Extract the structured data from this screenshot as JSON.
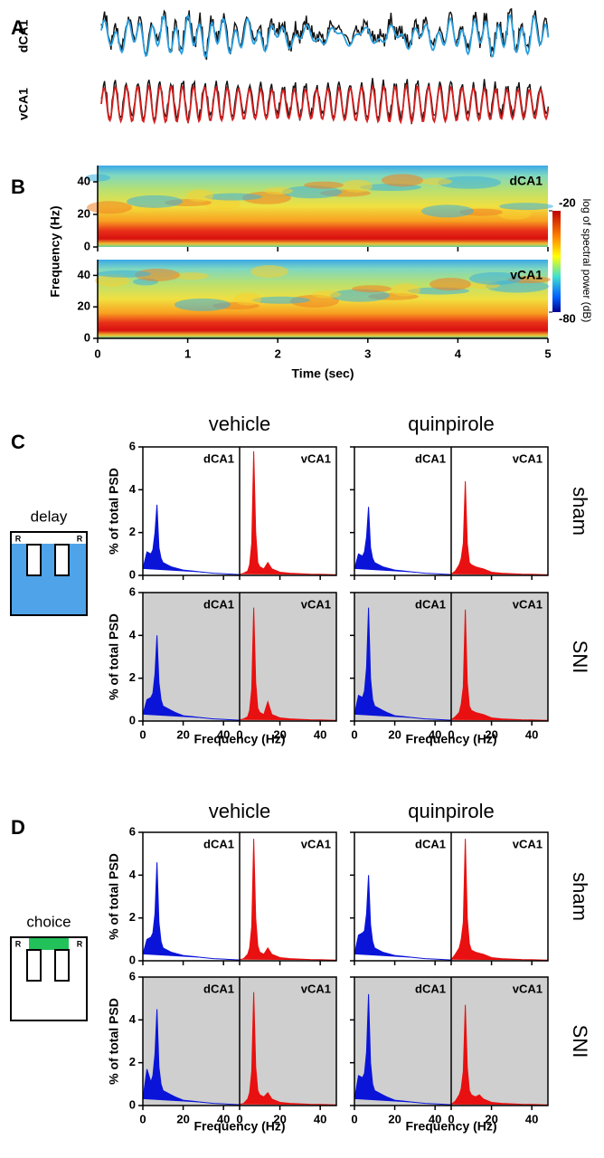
{
  "panel_labels": [
    "A",
    "B",
    "C",
    "D"
  ],
  "traces": {
    "labels": [
      "dCA1",
      "vCA1"
    ],
    "colors": [
      "#2aa0e0",
      "#d42020"
    ]
  },
  "spectrogram": {
    "ylabel": "Frequency (Hz)",
    "xlabel": "Time (sec)",
    "colorbar": {
      "clim": [
        -80,
        -20
      ],
      "ticks": [
        -20,
        -80
      ],
      "label": "log of spectral power (dB)"
    }
  },
  "psd": {
    "column_titles": [
      "vehicle",
      "quinpirole"
    ],
    "row_labels": [
      "sham",
      "SNI"
    ],
    "ylabel": "% of total PSD",
    "xlabel": "Frequency (Hz)"
  },
  "tasks": [
    {
      "label": "delay",
      "reward": "R",
      "color": "#4fa3e8"
    },
    {
      "label": "choice",
      "reward": "R",
      "color": "#22c15a"
    }
  ],
  "chart_data": [
    {
      "type": "heatmap",
      "label": "dCA1",
      "xlim": [
        0,
        5
      ],
      "xticks": [
        0,
        1,
        2,
        3,
        4,
        5
      ],
      "ylim": [
        0,
        50
      ],
      "yticks": [
        0,
        20,
        40
      ]
    },
    {
      "type": "heatmap",
      "label": "vCA1",
      "xlim": [
        0,
        5
      ],
      "xticks": [
        0,
        1,
        2,
        3,
        4,
        5
      ],
      "ylim": [
        0,
        50
      ],
      "yticks": [
        0,
        20,
        40
      ]
    },
    {
      "type": "area",
      "background": "#ffffff",
      "xlim": [
        0,
        48
      ],
      "xticks": [
        0,
        20,
        40
      ],
      "ylim": [
        0,
        6
      ],
      "yticks": [
        0,
        2,
        4,
        6
      ],
      "x": [
        0,
        2,
        4,
        5,
        6,
        7,
        8,
        9,
        10,
        12,
        14,
        16,
        20,
        25,
        30,
        35,
        40,
        45,
        48
      ],
      "series": [
        {
          "name": "dCA1",
          "color": "#0a14d8",
          "values": [
            0.3,
            1.1,
            1.0,
            1.2,
            2.0,
            3.3,
            1.3,
            0.8,
            0.6,
            0.5,
            0.4,
            0.35,
            0.25,
            0.2,
            0.15,
            0.1,
            0.08,
            0.05,
            0.04
          ]
        },
        {
          "name": "vCA1",
          "color": "#e81010",
          "values": [
            0.05,
            0.1,
            0.2,
            0.5,
            1.5,
            5.8,
            2.0,
            0.6,
            0.4,
            0.3,
            0.6,
            0.3,
            0.15,
            0.1,
            0.08,
            0.06,
            0.05,
            0.04,
            0.03
          ]
        }
      ]
    },
    {
      "type": "area",
      "background": "#ffffff",
      "xlim": [
        0,
        48
      ],
      "xticks": [
        0,
        20,
        40
      ],
      "ylim": [
        0,
        6
      ],
      "yticks": [
        0,
        2,
        4,
        6
      ],
      "x": [
        0,
        2,
        4,
        5,
        6,
        7,
        8,
        9,
        10,
        12,
        14,
        16,
        20,
        25,
        30,
        35,
        40,
        45,
        48
      ],
      "series": [
        {
          "name": "dCA1",
          "color": "#0a14d8",
          "values": [
            0.3,
            1.0,
            0.9,
            1.1,
            1.8,
            3.2,
            1.3,
            0.8,
            0.6,
            0.5,
            0.4,
            0.35,
            0.25,
            0.2,
            0.15,
            0.1,
            0.08,
            0.05,
            0.04
          ]
        },
        {
          "name": "vCA1",
          "color": "#e81010",
          "values": [
            0.05,
            0.2,
            0.5,
            0.8,
            1.5,
            4.4,
            1.5,
            0.6,
            0.5,
            0.4,
            0.35,
            0.3,
            0.15,
            0.1,
            0.08,
            0.06,
            0.05,
            0.04,
            0.03
          ]
        }
      ]
    },
    {
      "type": "area",
      "background": "#cfcfcf",
      "xlim": [
        0,
        48
      ],
      "xticks": [
        0,
        20,
        40
      ],
      "ylim": [
        0,
        6
      ],
      "yticks": [
        0,
        2,
        4,
        6
      ],
      "x": [
        0,
        2,
        4,
        5,
        6,
        7,
        8,
        9,
        10,
        12,
        14,
        16,
        20,
        25,
        30,
        35,
        40,
        45,
        48
      ],
      "series": [
        {
          "name": "dCA1",
          "color": "#0a14d8",
          "values": [
            0.3,
            1.0,
            1.1,
            1.3,
            2.2,
            4.0,
            1.8,
            1.0,
            0.7,
            0.6,
            0.5,
            0.4,
            0.25,
            0.2,
            0.15,
            0.1,
            0.08,
            0.05,
            0.04
          ]
        },
        {
          "name": "vCA1",
          "color": "#e81010",
          "values": [
            0.05,
            0.1,
            0.2,
            0.5,
            1.5,
            5.3,
            1.8,
            0.6,
            0.4,
            0.3,
            0.9,
            0.3,
            0.15,
            0.1,
            0.08,
            0.06,
            0.05,
            0.04,
            0.03
          ]
        }
      ]
    },
    {
      "type": "area",
      "background": "#cfcfcf",
      "xlim": [
        0,
        48
      ],
      "xticks": [
        0,
        20,
        40
      ],
      "ylim": [
        0,
        6
      ],
      "yticks": [
        0,
        2,
        4,
        6
      ],
      "x": [
        0,
        2,
        4,
        5,
        6,
        7,
        8,
        9,
        10,
        12,
        14,
        16,
        20,
        25,
        30,
        35,
        40,
        45,
        48
      ],
      "series": [
        {
          "name": "dCA1",
          "color": "#0a14d8",
          "values": [
            0.3,
            1.2,
            1.1,
            1.4,
            2.5,
            5.3,
            2.0,
            1.0,
            0.7,
            0.6,
            0.5,
            0.4,
            0.25,
            0.2,
            0.15,
            0.1,
            0.08,
            0.05,
            0.04
          ]
        },
        {
          "name": "vCA1",
          "color": "#e81010",
          "values": [
            0.05,
            0.2,
            0.4,
            0.8,
            1.6,
            5.2,
            1.8,
            0.7,
            0.5,
            0.4,
            0.35,
            0.3,
            0.15,
            0.1,
            0.08,
            0.06,
            0.05,
            0.04,
            0.03
          ]
        }
      ]
    },
    {
      "type": "area",
      "background": "#ffffff",
      "xlim": [
        0,
        48
      ],
      "xticks": [
        0,
        20,
        40
      ],
      "ylim": [
        0,
        6
      ],
      "yticks": [
        0,
        2,
        4,
        6
      ],
      "x": [
        0,
        2,
        4,
        5,
        6,
        7,
        8,
        9,
        10,
        12,
        14,
        16,
        20,
        25,
        30,
        35,
        40,
        45,
        48
      ],
      "series": [
        {
          "name": "dCA1",
          "color": "#0a14d8",
          "values": [
            0.3,
            1.0,
            1.1,
            1.3,
            2.2,
            4.6,
            1.8,
            0.9,
            0.6,
            0.5,
            0.4,
            0.35,
            0.25,
            0.2,
            0.15,
            0.1,
            0.08,
            0.05,
            0.04
          ]
        },
        {
          "name": "vCA1",
          "color": "#e81010",
          "values": [
            0.05,
            0.1,
            0.3,
            0.6,
            1.6,
            5.7,
            2.0,
            0.7,
            0.4,
            0.3,
            0.6,
            0.3,
            0.15,
            0.1,
            0.08,
            0.06,
            0.05,
            0.04,
            0.03
          ]
        }
      ]
    },
    {
      "type": "area",
      "background": "#ffffff",
      "xlim": [
        0,
        48
      ],
      "xticks": [
        0,
        20,
        40
      ],
      "ylim": [
        0,
        6
      ],
      "yticks": [
        0,
        2,
        4,
        6
      ],
      "x": [
        0,
        2,
        4,
        5,
        6,
        7,
        8,
        9,
        10,
        12,
        14,
        16,
        20,
        25,
        30,
        35,
        40,
        45,
        48
      ],
      "series": [
        {
          "name": "dCA1",
          "color": "#0a14d8",
          "values": [
            0.3,
            1.2,
            1.3,
            1.4,
            2.2,
            4.0,
            1.7,
            0.9,
            0.6,
            0.5,
            0.4,
            0.35,
            0.25,
            0.2,
            0.15,
            0.1,
            0.08,
            0.05,
            0.04
          ]
        },
        {
          "name": "vCA1",
          "color": "#e81010",
          "values": [
            0.05,
            0.3,
            0.6,
            1.0,
            1.8,
            5.7,
            2.0,
            0.8,
            0.5,
            0.4,
            0.35,
            0.3,
            0.15,
            0.1,
            0.08,
            0.06,
            0.05,
            0.04,
            0.03
          ]
        }
      ]
    },
    {
      "type": "area",
      "background": "#cfcfcf",
      "xlim": [
        0,
        48
      ],
      "xticks": [
        0,
        20,
        40
      ],
      "ylim": [
        0,
        6
      ],
      "yticks": [
        0,
        2,
        4,
        6
      ],
      "x": [
        0,
        2,
        4,
        5,
        6,
        7,
        8,
        9,
        10,
        12,
        14,
        16,
        20,
        25,
        30,
        35,
        40,
        45,
        48
      ],
      "series": [
        {
          "name": "dCA1",
          "color": "#0a14d8",
          "values": [
            0.3,
            1.7,
            1.1,
            1.4,
            2.4,
            4.5,
            1.8,
            1.0,
            0.7,
            0.6,
            0.5,
            0.4,
            0.25,
            0.2,
            0.15,
            0.1,
            0.08,
            0.05,
            0.04
          ]
        },
        {
          "name": "vCA1",
          "color": "#e81010",
          "values": [
            0.05,
            0.1,
            0.3,
            0.6,
            1.6,
            5.3,
            1.8,
            0.7,
            0.5,
            0.4,
            0.6,
            0.3,
            0.15,
            0.1,
            0.08,
            0.06,
            0.05,
            0.04,
            0.03
          ]
        }
      ]
    },
    {
      "type": "area",
      "background": "#cfcfcf",
      "xlim": [
        0,
        48
      ],
      "xticks": [
        0,
        20,
        40
      ],
      "ylim": [
        0,
        6
      ],
      "yticks": [
        0,
        2,
        4,
        6
      ],
      "x": [
        0,
        2,
        4,
        5,
        6,
        7,
        8,
        9,
        10,
        12,
        14,
        16,
        20,
        25,
        30,
        35,
        40,
        45,
        48
      ],
      "series": [
        {
          "name": "dCA1",
          "color": "#0a14d8",
          "values": [
            0.3,
            1.4,
            1.3,
            1.5,
            2.5,
            5.2,
            2.0,
            1.0,
            0.7,
            0.6,
            0.5,
            0.4,
            0.25,
            0.2,
            0.15,
            0.1,
            0.08,
            0.05,
            0.04
          ]
        },
        {
          "name": "vCA1",
          "color": "#e81010",
          "values": [
            0.05,
            0.2,
            0.5,
            0.8,
            1.6,
            4.7,
            1.8,
            0.7,
            0.5,
            0.4,
            0.5,
            0.3,
            0.15,
            0.1,
            0.08,
            0.06,
            0.05,
            0.04,
            0.03
          ]
        }
      ]
    }
  ]
}
